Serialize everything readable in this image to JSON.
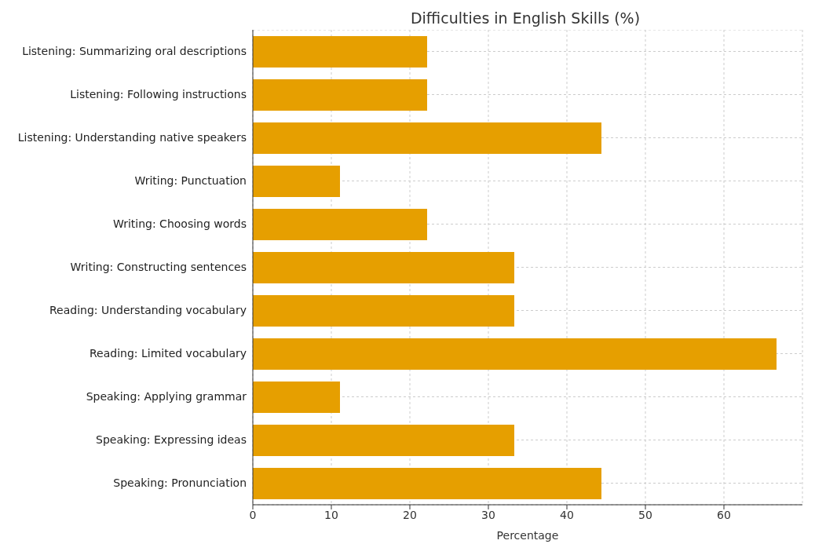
{
  "chart_data": {
    "type": "bar",
    "orientation": "horizontal",
    "title": "Difficulties in English Skills (%)",
    "xlabel": "Percentage",
    "categories": [
      "Listening: Summarizing oral descriptions",
      "Listening: Following instructions",
      "Listening: Understanding native speakers",
      "Writing: Punctuation",
      "Writing: Choosing words",
      "Writing: Constructing sentences",
      "Reading: Understanding vocabulary",
      "Reading: Limited vocabulary",
      "Speaking: Applying grammar",
      "Speaking: Expressing ideas",
      "Speaking: Pronunciation"
    ],
    "values": [
      22.2,
      22.2,
      44.4,
      11.1,
      22.2,
      33.3,
      33.3,
      66.7,
      11.1,
      33.3,
      44.4
    ],
    "color": "#e69f00",
    "xlim": [
      0,
      70
    ],
    "xticks": [
      0,
      10,
      20,
      30,
      40,
      50,
      60
    ],
    "grid": true
  }
}
